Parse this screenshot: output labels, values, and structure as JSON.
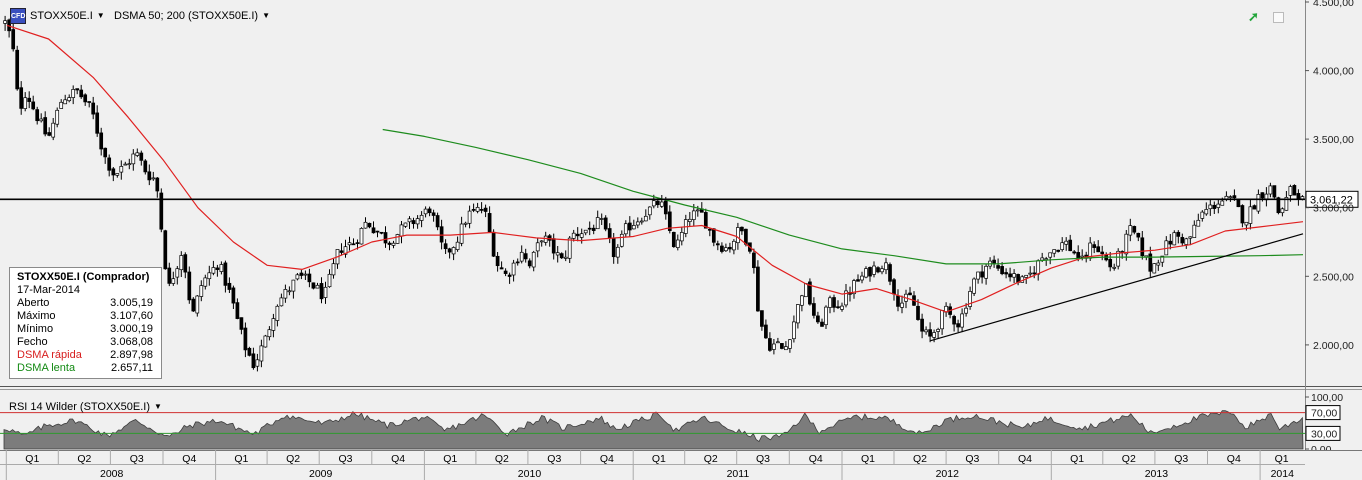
{
  "header": {
    "instrument_icon": "cfd-instrument-icon",
    "instrument_label": "STOXX50E.I",
    "indicator_label": "DSMA 50; 200 (STOXX50E.I)",
    "trend_icon": "trend-arrow-icon",
    "restore_icon": "restore-window-icon"
  },
  "info": {
    "title": "STOXX50E.I (Comprador)",
    "date": "17-Mar-2014",
    "rows": [
      {
        "label": "Aberto",
        "value": "3.005,19"
      },
      {
        "label": "Máximo",
        "value": "3.107,60"
      },
      {
        "label": "Mínimo",
        "value": "3.000,19"
      },
      {
        "label": "Fecho",
        "value": "3.068,08"
      },
      {
        "label": "DSMA rápida",
        "value": "2.897,98"
      },
      {
        "label": "DSMA lenta",
        "value": "2.657,11"
      }
    ]
  },
  "rsi_panel": {
    "label": "RSI 14 Wilder (STOXX50E.I)"
  },
  "colors": {
    "background": "#f0f0f0",
    "fast_ma": "#e02020",
    "slow_ma": "#1e8c1e",
    "candle_up": "#ffffff",
    "candle_down": "#000000",
    "rsi_fill": "#7c7c7c",
    "current_price_line": "#000000"
  },
  "chart_data": [
    {
      "type": "candlestick",
      "title": "STOXX50E.I",
      "x_range": [
        "2007-12-28",
        "2014-03-17"
      ],
      "ylim": [
        1700,
        4500
      ],
      "y_ticks": [
        2000,
        2500,
        3000,
        3500,
        4000,
        4500
      ],
      "y_tick_labels": [
        "2.000,00",
        "2.500,00",
        "3.000,00",
        "3.500,00",
        "4.000,00",
        "4.500,00"
      ],
      "current_price_label": "3.061,22",
      "current_price": 3061.22,
      "close_anchors": [
        [
          "2008-01-02",
          4350
        ],
        [
          "2008-01-14",
          4120
        ],
        [
          "2008-01-23",
          3700
        ],
        [
          "2008-02-04",
          3850
        ],
        [
          "2008-02-20",
          3700
        ],
        [
          "2008-03-14",
          3500
        ],
        [
          "2008-04-08",
          3800
        ],
        [
          "2008-05-05",
          3850
        ],
        [
          "2008-05-30",
          3700
        ],
        [
          "2008-06-20",
          3380
        ],
        [
          "2008-07-08",
          3240
        ],
        [
          "2008-07-25",
          3300
        ],
        [
          "2008-08-15",
          3400
        ],
        [
          "2008-09-03",
          3250
        ],
        [
          "2008-09-19",
          3200
        ],
        [
          "2008-10-10",
          2400
        ],
        [
          "2008-11-04",
          2700
        ],
        [
          "2008-11-21",
          2200
        ],
        [
          "2008-12-08",
          2450
        ],
        [
          "2009-01-06",
          2600
        ],
        [
          "2009-01-28",
          2350
        ],
        [
          "2009-02-20",
          2000
        ],
        [
          "2009-03-09",
          1850
        ],
        [
          "2009-03-30",
          2050
        ],
        [
          "2009-04-17",
          2300
        ],
        [
          "2009-05-08",
          2400
        ],
        [
          "2009-05-27",
          2500
        ],
        [
          "2009-06-17",
          2450
        ],
        [
          "2009-07-10",
          2350
        ],
        [
          "2009-08-05",
          2700
        ],
        [
          "2009-09-01",
          2750
        ],
        [
          "2009-09-22",
          2900
        ],
        [
          "2009-10-30",
          2750
        ],
        [
          "2009-11-25",
          2850
        ],
        [
          "2009-12-30",
          2950
        ],
        [
          "2010-01-11",
          3000
        ],
        [
          "2010-02-05",
          2650
        ],
        [
          "2010-02-25",
          2750
        ],
        [
          "2010-03-18",
          2950
        ],
        [
          "2010-04-15",
          3000
        ],
        [
          "2010-05-07",
          2600
        ],
        [
          "2010-05-25",
          2500
        ],
        [
          "2010-06-21",
          2700
        ],
        [
          "2010-07-02",
          2550
        ],
        [
          "2010-07-26",
          2800
        ],
        [
          "2010-08-31",
          2600
        ],
        [
          "2010-09-15",
          2800
        ],
        [
          "2010-10-20",
          2850
        ],
        [
          "2010-11-05",
          2900
        ],
        [
          "2010-11-30",
          2650
        ],
        [
          "2010-12-20",
          2850
        ],
        [
          "2011-01-19",
          2950
        ],
        [
          "2011-02-17",
          3050
        ],
        [
          "2011-03-16",
          2700
        ],
        [
          "2011-04-11",
          2950
        ],
        [
          "2011-05-02",
          2950
        ],
        [
          "2011-05-24",
          2750
        ],
        [
          "2011-06-16",
          2700
        ],
        [
          "2011-07-07",
          2850
        ],
        [
          "2011-07-27",
          2700
        ],
        [
          "2011-08-09",
          2200
        ],
        [
          "2011-08-25",
          2000
        ],
        [
          "2011-09-12",
          2000
        ],
        [
          "2011-09-22",
          1950
        ],
        [
          "2011-10-11",
          2200
        ],
        [
          "2011-10-27",
          2450
        ],
        [
          "2011-11-22",
          2100
        ],
        [
          "2011-12-07",
          2300
        ],
        [
          "2011-12-30",
          2300
        ],
        [
          "2012-01-24",
          2450
        ],
        [
          "2012-02-21",
          2550
        ],
        [
          "2012-03-16",
          2600
        ],
        [
          "2012-04-10",
          2300
        ],
        [
          "2012-05-02",
          2350
        ],
        [
          "2012-05-18",
          2100
        ],
        [
          "2012-06-04",
          2050
        ],
        [
          "2012-06-29",
          2250
        ],
        [
          "2012-07-24",
          2150
        ],
        [
          "2012-08-16",
          2450
        ],
        [
          "2012-09-14",
          2600
        ],
        [
          "2012-10-05",
          2550
        ],
        [
          "2012-11-15",
          2450
        ],
        [
          "2012-12-18",
          2650
        ],
        [
          "2013-01-25",
          2750
        ],
        [
          "2013-02-25",
          2600
        ],
        [
          "2013-03-15",
          2750
        ],
        [
          "2013-04-18",
          2550
        ],
        [
          "2013-05-21",
          2850
        ],
        [
          "2013-06-24",
          2550
        ],
        [
          "2013-07-17",
          2700
        ],
        [
          "2013-08-05",
          2800
        ],
        [
          "2013-08-28",
          2750
        ],
        [
          "2013-09-20",
          2950
        ],
        [
          "2013-10-22",
          3050
        ],
        [
          "2013-11-15",
          3050
        ],
        [
          "2013-12-05",
          2900
        ],
        [
          "2013-12-31",
          3100
        ],
        [
          "2014-01-22",
          3150
        ],
        [
          "2014-02-03",
          2950
        ],
        [
          "2014-02-26",
          3150
        ],
        [
          "2014-03-13",
          3000
        ],
        [
          "2014-03-17",
          3068.08
        ]
      ],
      "series": [
        {
          "name": "DSMA rápida",
          "color": "#e02020",
          "points": [
            [
              "2008-01-02",
              4330
            ],
            [
              "2008-03-15",
              4230
            ],
            [
              "2008-06-01",
              3950
            ],
            [
              "2008-08-01",
              3660
            ],
            [
              "2008-10-01",
              3350
            ],
            [
              "2008-12-01",
              3000
            ],
            [
              "2009-02-01",
              2750
            ],
            [
              "2009-04-01",
              2580
            ],
            [
              "2009-06-01",
              2550
            ],
            [
              "2009-08-01",
              2640
            ],
            [
              "2009-10-01",
              2750
            ],
            [
              "2009-12-01",
              2800
            ],
            [
              "2010-02-15",
              2800
            ],
            [
              "2010-05-01",
              2820
            ],
            [
              "2010-07-15",
              2780
            ],
            [
              "2010-10-01",
              2760
            ],
            [
              "2011-01-01",
              2790
            ],
            [
              "2011-03-01",
              2850
            ],
            [
              "2011-05-01",
              2870
            ],
            [
              "2011-07-01",
              2790
            ],
            [
              "2011-09-01",
              2580
            ],
            [
              "2011-11-01",
              2440
            ],
            [
              "2012-01-01",
              2370
            ],
            [
              "2012-03-01",
              2410
            ],
            [
              "2012-05-01",
              2330
            ],
            [
              "2012-07-01",
              2240
            ],
            [
              "2012-09-01",
              2330
            ],
            [
              "2012-11-01",
              2450
            ],
            [
              "2013-01-01",
              2560
            ],
            [
              "2013-03-01",
              2640
            ],
            [
              "2013-05-01",
              2670
            ],
            [
              "2013-07-01",
              2690
            ],
            [
              "2013-09-01",
              2730
            ],
            [
              "2013-11-01",
              2830
            ],
            [
              "2014-01-01",
              2860
            ],
            [
              "2014-03-17",
              2897.98
            ]
          ]
        },
        {
          "name": "DSMA lenta",
          "color": "#1e8c1e",
          "points": [
            [
              "2009-10-20",
              3570
            ],
            [
              "2010-01-01",
              3520
            ],
            [
              "2010-04-01",
              3440
            ],
            [
              "2010-07-01",
              3350
            ],
            [
              "2010-10-01",
              3250
            ],
            [
              "2011-01-01",
              3120
            ],
            [
              "2011-04-01",
              3020
            ],
            [
              "2011-07-01",
              2930
            ],
            [
              "2011-10-01",
              2800
            ],
            [
              "2012-01-01",
              2700
            ],
            [
              "2012-04-01",
              2650
            ],
            [
              "2012-07-01",
              2590
            ],
            [
              "2012-10-01",
              2590
            ],
            [
              "2013-01-01",
              2620
            ],
            [
              "2013-04-01",
              2640
            ],
            [
              "2013-07-01",
              2640
            ],
            [
              "2013-10-01",
              2645
            ],
            [
              "2014-01-01",
              2650
            ],
            [
              "2014-03-17",
              2657.11
            ]
          ]
        },
        {
          "name": "",
          "kind": "trendline",
          "color": "#000000",
          "points": [
            [
              "2012-06-04",
              2030
            ],
            [
              "2014-03-17",
              2810
            ]
          ]
        }
      ]
    },
    {
      "type": "area",
      "title": "RSI 14 Wilder (STOXX50E.I)",
      "ylim": [
        0,
        100
      ],
      "y_tick_labels": [
        "0,00",
        "30,00",
        "70,00",
        "100,00"
      ],
      "y_ticks": [
        0,
        30,
        70,
        100
      ],
      "levels": [
        70,
        30
      ],
      "rsi_anchors": [
        [
          "2008-01-02",
          40
        ],
        [
          "2008-02-01",
          25
        ],
        [
          "2008-03-10",
          45
        ],
        [
          "2008-05-01",
          55
        ],
        [
          "2008-06-25",
          25
        ],
        [
          "2008-08-15",
          55
        ],
        [
          "2008-10-10",
          22
        ],
        [
          "2008-11-15",
          45
        ],
        [
          "2009-01-06",
          55
        ],
        [
          "2009-03-09",
          28
        ],
        [
          "2009-05-01",
          65
        ],
        [
          "2009-07-10",
          48
        ],
        [
          "2009-09-01",
          68
        ],
        [
          "2009-10-30",
          45
        ],
        [
          "2009-12-30",
          62
        ],
        [
          "2010-02-05",
          35
        ],
        [
          "2010-04-15",
          65
        ],
        [
          "2010-05-25",
          30
        ],
        [
          "2010-07-26",
          60
        ],
        [
          "2010-08-31",
          40
        ],
        [
          "2010-11-05",
          60
        ],
        [
          "2010-11-30",
          38
        ],
        [
          "2011-02-17",
          68
        ],
        [
          "2011-03-16",
          35
        ],
        [
          "2011-05-02",
          60
        ],
        [
          "2011-06-16",
          40
        ],
        [
          "2011-08-09",
          20
        ],
        [
          "2011-09-22",
          25
        ],
        [
          "2011-10-27",
          65
        ],
        [
          "2011-11-22",
          35
        ],
        [
          "2012-01-24",
          62
        ],
        [
          "2012-03-16",
          60
        ],
        [
          "2012-05-18",
          28
        ],
        [
          "2012-06-29",
          55
        ],
        [
          "2012-08-16",
          65
        ],
        [
          "2012-11-15",
          40
        ],
        [
          "2012-12-18",
          60
        ],
        [
          "2013-02-25",
          40
        ],
        [
          "2013-05-21",
          65
        ],
        [
          "2013-06-24",
          30
        ],
        [
          "2013-09-20",
          62
        ],
        [
          "2013-11-15",
          72
        ],
        [
          "2013-12-05",
          40
        ],
        [
          "2014-01-22",
          68
        ],
        [
          "2014-02-03",
          38
        ],
        [
          "2014-03-17",
          60
        ]
      ]
    }
  ],
  "time_axis": {
    "quarters": [
      {
        "label": "Q1",
        "start": "2008-01-01"
      },
      {
        "label": "Q2",
        "start": "2008-04-01"
      },
      {
        "label": "Q3",
        "start": "2008-07-01"
      },
      {
        "label": "Q4",
        "start": "2008-10-01"
      },
      {
        "label": "Q1",
        "start": "2009-01-01"
      },
      {
        "label": "Q2",
        "start": "2009-04-01"
      },
      {
        "label": "Q3",
        "start": "2009-07-01"
      },
      {
        "label": "Q4",
        "start": "2009-10-01"
      },
      {
        "label": "Q1",
        "start": "2010-01-01"
      },
      {
        "label": "Q2",
        "start": "2010-04-01"
      },
      {
        "label": "Q3",
        "start": "2010-07-01"
      },
      {
        "label": "Q4",
        "start": "2010-10-01"
      },
      {
        "label": "Q1",
        "start": "2011-01-01"
      },
      {
        "label": "Q2",
        "start": "2011-04-01"
      },
      {
        "label": "Q3",
        "start": "2011-07-01"
      },
      {
        "label": "Q4",
        "start": "2011-10-01"
      },
      {
        "label": "Q1",
        "start": "2012-01-01"
      },
      {
        "label": "Q2",
        "start": "2012-04-01"
      },
      {
        "label": "Q3",
        "start": "2012-07-01"
      },
      {
        "label": "Q4",
        "start": "2012-10-01"
      },
      {
        "label": "Q1",
        "start": "2013-01-01"
      },
      {
        "label": "Q2",
        "start": "2013-04-01"
      },
      {
        "label": "Q3",
        "start": "2013-07-01"
      },
      {
        "label": "Q4",
        "start": "2013-10-01"
      },
      {
        "label": "Q1",
        "start": "2014-01-01"
      }
    ],
    "years": [
      {
        "label": "2008",
        "start": "2008-01-01",
        "end": "2009-01-01"
      },
      {
        "label": "2009",
        "start": "2009-01-01",
        "end": "2010-01-01"
      },
      {
        "label": "2010",
        "start": "2010-01-01",
        "end": "2011-01-01"
      },
      {
        "label": "2011",
        "start": "2011-01-01",
        "end": "2012-01-01"
      },
      {
        "label": "2012",
        "start": "2012-01-01",
        "end": "2013-01-01"
      },
      {
        "label": "2013",
        "start": "2013-01-01",
        "end": "2014-01-01"
      },
      {
        "label": "2014",
        "start": "2014-01-01",
        "end": "2014-03-17"
      }
    ]
  }
}
